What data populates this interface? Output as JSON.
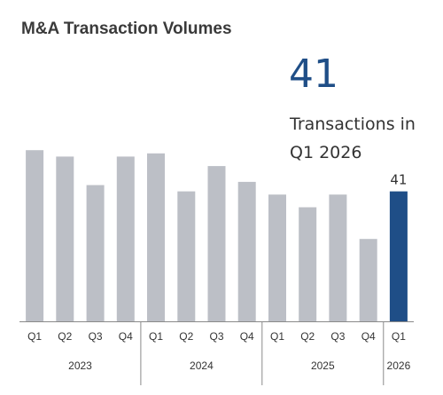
{
  "title": "M&A Transaction Volumes",
  "kpi": {
    "value": "41",
    "caption": "Transactions in Q1 2026"
  },
  "colors": {
    "bar": "#bcbfc6",
    "highlight": "#1f4e87",
    "axis": "#8a8a8a"
  },
  "chart_data": {
    "type": "bar",
    "categories": [
      "Q1",
      "Q2",
      "Q3",
      "Q4",
      "Q1",
      "Q2",
      "Q3",
      "Q4",
      "Q1",
      "Q2",
      "Q3",
      "Q4",
      "Q1"
    ],
    "years": [
      {
        "label": "2023",
        "count": 4
      },
      {
        "label": "2024",
        "count": 4
      },
      {
        "label": "2025",
        "count": 4
      },
      {
        "label": "2026",
        "count": 1
      }
    ],
    "values": [
      54,
      52,
      43,
      52,
      53,
      41,
      49,
      44,
      40,
      36,
      40,
      26,
      41
    ],
    "highlight_index": 12,
    "data_labels": [
      {
        "index": 12,
        "text": "41"
      }
    ],
    "ylim": [
      0,
      60
    ],
    "grid": false,
    "xlabel": "",
    "ylabel": ""
  }
}
